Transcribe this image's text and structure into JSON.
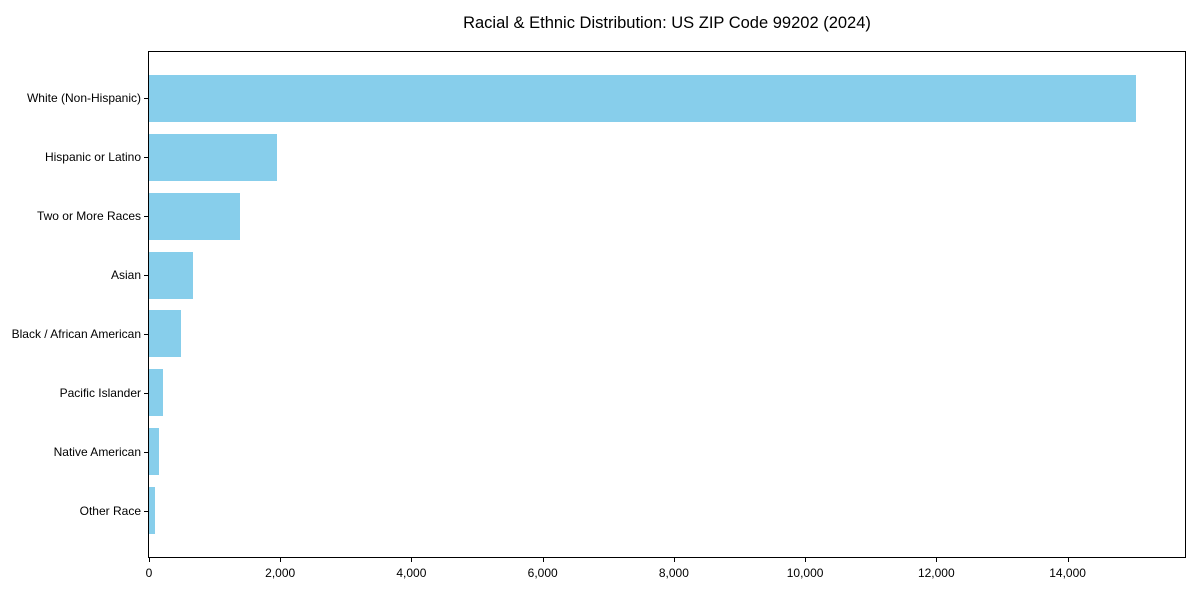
{
  "title": "Racial & Ethnic Distribution: US ZIP Code 99202 (2024)",
  "colors": {
    "bar": "#87CEEB",
    "axis": "#000000",
    "background": "#ffffff",
    "text": "#000000"
  },
  "chart_data": {
    "type": "bar",
    "orientation": "horizontal",
    "title": "Racial & Ethnic Distribution: US ZIP Code 99202 (2024)",
    "xlabel": "",
    "ylabel": "",
    "categories": [
      "White (Non-Hispanic)",
      "Hispanic or Latino",
      "Two or More Races",
      "Asian",
      "Black / African American",
      "Pacific Islander",
      "Native American",
      "Other Race"
    ],
    "values": [
      15050,
      1950,
      1390,
      670,
      490,
      205,
      155,
      85
    ],
    "xlim": [
      0,
      15790
    ],
    "x_ticks": [
      0,
      2000,
      4000,
      6000,
      8000,
      10000,
      12000,
      14000
    ],
    "x_tick_labels": [
      "0",
      "2,000",
      "4,000",
      "6,000",
      "8,000",
      "10,000",
      "12,000",
      "14,000"
    ],
    "bar_color": "#87CEEB",
    "grid": false,
    "legend": null,
    "sorted": "descending"
  }
}
